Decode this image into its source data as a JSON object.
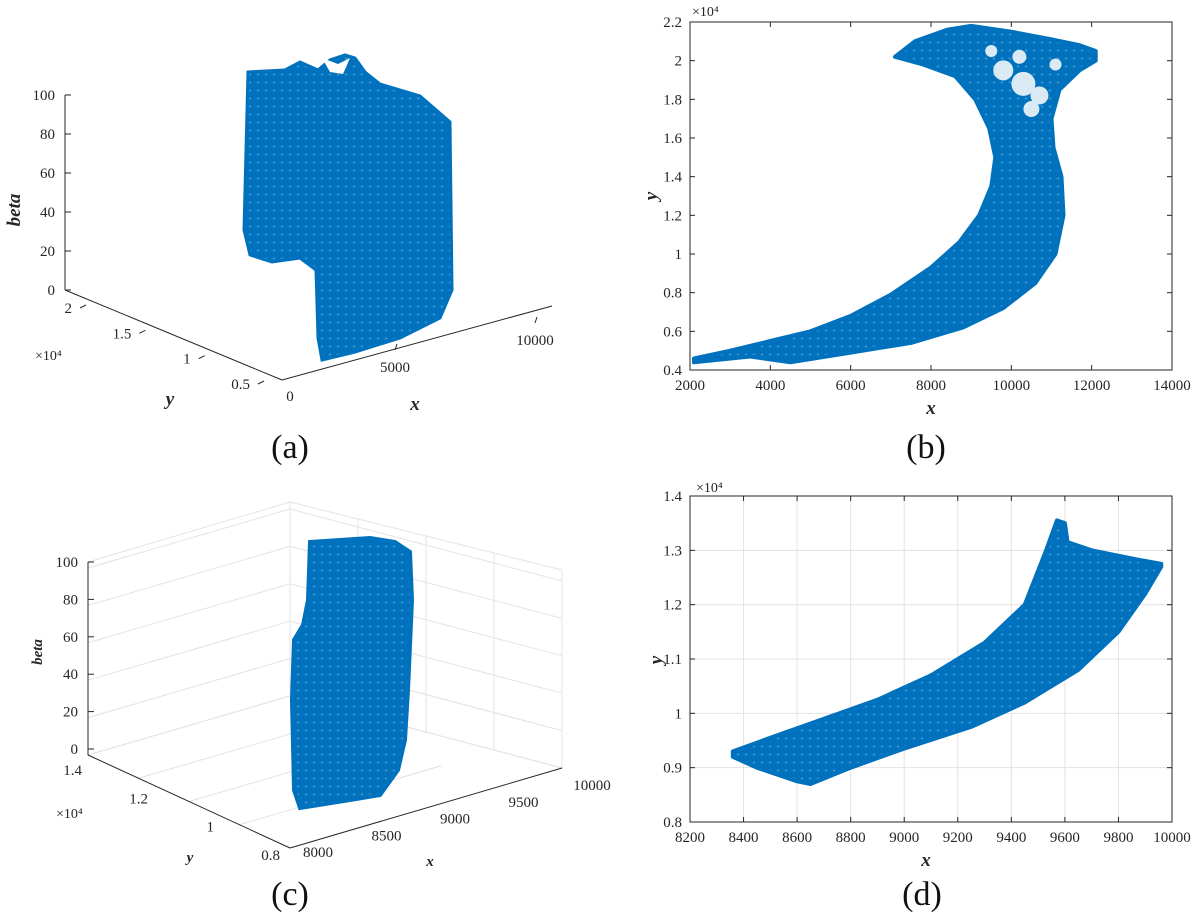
{
  "colors": {
    "series": "#0072BD",
    "axis": "#262626",
    "grid": "#e3e3e3"
  },
  "chart_data": [
    {
      "panel": "(a)",
      "type": "scatter",
      "projection": "3d",
      "marker": "+",
      "xlabel": "x",
      "ylabel": "y",
      "zlabel": "beta",
      "x_ticks": [
        "5000",
        "10000"
      ],
      "x_tick_values": [
        5000,
        10000
      ],
      "y_ticks": [
        "0.5",
        "1",
        "1.5",
        "2"
      ],
      "y_tick_values": [
        0.5,
        1,
        1.5,
        2
      ],
      "y_exponent": "×10⁴",
      "z_ticks": [
        "0",
        "20",
        "40",
        "60",
        "80",
        "100"
      ],
      "z_tick_values": [
        0,
        20,
        40,
        60,
        80,
        100
      ],
      "x_origin_label": "0",
      "grid": false
    },
    {
      "panel": "(b)",
      "type": "scatter",
      "marker": "+",
      "xlabel": "x",
      "ylabel": "y",
      "xlim": [
        2000,
        14000
      ],
      "ylim": [
        0.4,
        2.2
      ],
      "y_exponent": "×10⁴",
      "x_ticks": [
        "2000",
        "4000",
        "6000",
        "8000",
        "10000",
        "12000",
        "14000"
      ],
      "y_ticks": [
        "0.4",
        "0.6",
        "0.8",
        "1",
        "1.2",
        "1.4",
        "1.6",
        "1.8",
        "2",
        "2.2"
      ],
      "grid": false,
      "outline_upper": [
        [
          2100,
          0.46
        ],
        [
          3000,
          0.5
        ],
        [
          4000,
          0.55
        ],
        [
          5000,
          0.6
        ],
        [
          6000,
          0.68
        ],
        [
          7000,
          0.79
        ],
        [
          8000,
          0.93
        ],
        [
          8700,
          1.06
        ],
        [
          9200,
          1.2
        ],
        [
          9500,
          1.35
        ],
        [
          9600,
          1.5
        ],
        [
          9450,
          1.65
        ],
        [
          9100,
          1.8
        ],
        [
          8600,
          1.92
        ],
        [
          7800,
          1.98
        ],
        [
          7100,
          2.02
        ],
        [
          7600,
          2.1
        ],
        [
          8400,
          2.16
        ],
        [
          9000,
          2.18
        ],
        [
          10000,
          2.15
        ],
        [
          11000,
          2.11
        ],
        [
          11700,
          2.08
        ],
        [
          12100,
          2.05
        ]
      ],
      "outline_lower": [
        [
          12100,
          2.0
        ],
        [
          11700,
          1.95
        ],
        [
          11200,
          1.85
        ],
        [
          11000,
          1.7
        ],
        [
          11050,
          1.55
        ],
        [
          11250,
          1.4
        ],
        [
          11300,
          1.2
        ],
        [
          11100,
          1.0
        ],
        [
          10600,
          0.85
        ],
        [
          9800,
          0.72
        ],
        [
          8800,
          0.62
        ],
        [
          7500,
          0.54
        ],
        [
          6000,
          0.49
        ],
        [
          4500,
          0.44
        ],
        [
          3500,
          0.47
        ],
        [
          2100,
          0.44
        ]
      ]
    },
    {
      "panel": "(c)",
      "type": "scatter",
      "projection": "3d",
      "marker": "*",
      "xlabel": "x",
      "ylabel": "y",
      "zlabel": "beta",
      "x_ticks": [
        "8000",
        "8500",
        "9000",
        "9500",
        "10000"
      ],
      "x_tick_values": [
        8000,
        8500,
        9000,
        9500,
        10000
      ],
      "y_ticks": [
        "0.8",
        "1",
        "1.2",
        "1.4"
      ],
      "y_tick_values": [
        0.8,
        1,
        1.2,
        1.4
      ],
      "y_exponent": "×10⁴",
      "z_ticks": [
        "0",
        "20",
        "40",
        "60",
        "80",
        "100"
      ],
      "z_tick_values": [
        0,
        20,
        40,
        60,
        80,
        100
      ],
      "grid": true
    },
    {
      "panel": "(d)",
      "type": "scatter",
      "marker": "*",
      "xlabel": "x",
      "ylabel": "y",
      "xlim": [
        8200,
        10000
      ],
      "ylim": [
        0.8,
        1.4
      ],
      "y_exponent": "×10⁴",
      "x_ticks": [
        "8200",
        "8400",
        "8600",
        "8800",
        "9000",
        "9200",
        "9400",
        "9600",
        "9800",
        "10000"
      ],
      "y_ticks": [
        "0.8",
        "0.9",
        "1",
        "1.1",
        "1.2",
        "1.3",
        "1.4"
      ],
      "grid": true,
      "outline_upper": [
        [
          8360,
          0.93
        ],
        [
          8500,
          0.955
        ],
        [
          8700,
          0.99
        ],
        [
          8900,
          1.025
        ],
        [
          9100,
          1.07
        ],
        [
          9300,
          1.13
        ],
        [
          9450,
          1.2
        ],
        [
          9530,
          1.3
        ],
        [
          9570,
          1.355
        ],
        [
          9600,
          1.35
        ],
        [
          9610,
          1.315
        ],
        [
          9700,
          1.3
        ],
        [
          9850,
          1.285
        ],
        [
          9960,
          1.275
        ]
      ],
      "outline_lower": [
        [
          9960,
          1.27
        ],
        [
          9900,
          1.22
        ],
        [
          9800,
          1.15
        ],
        [
          9650,
          1.08
        ],
        [
          9450,
          1.02
        ],
        [
          9250,
          0.975
        ],
        [
          9000,
          0.935
        ],
        [
          8800,
          0.9
        ],
        [
          8650,
          0.87
        ],
        [
          8600,
          0.875
        ],
        [
          8450,
          0.9
        ],
        [
          8360,
          0.92
        ]
      ]
    }
  ]
}
